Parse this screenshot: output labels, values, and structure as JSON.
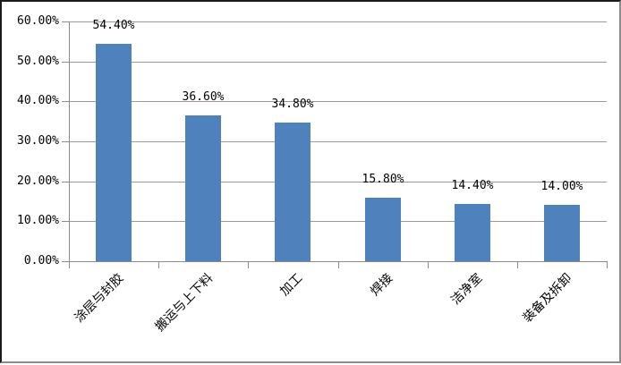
{
  "chart_data": {
    "type": "bar",
    "title": "",
    "xlabel": "",
    "ylabel": "",
    "categories": [
      "涂层与封胶",
      "搬运与上下料",
      "加工",
      "焊接",
      "洁净室",
      "装备及拆卸"
    ],
    "values": [
      54.4,
      36.6,
      34.8,
      15.8,
      14.4,
      14.0
    ],
    "value_labels": [
      "54.40%",
      "36.60%",
      "34.80%",
      "15.80%",
      "14.40%",
      "14.00%"
    ],
    "y_ticks": [
      "60.00%",
      "50.00%",
      "40.00%",
      "30.00%",
      "20.00%",
      "10.00%",
      "0.00%"
    ],
    "ylim": [
      0,
      60
    ],
    "grid": true,
    "legend_position": "none",
    "bar_color": "#4f81bd",
    "gridline_color": "#9a9a9a",
    "axis_color": "#8c8c8c",
    "text_color": "#000000"
  }
}
